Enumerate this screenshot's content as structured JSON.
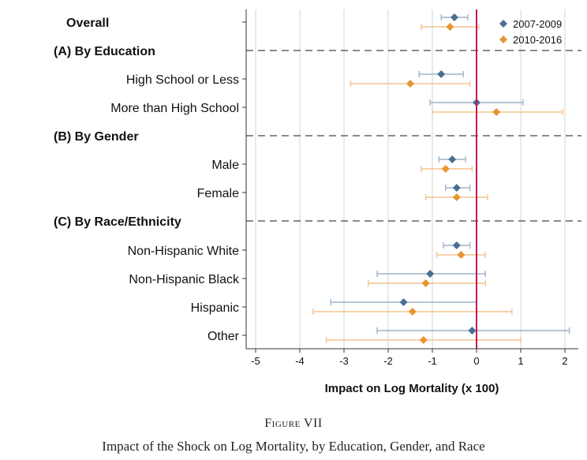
{
  "chart_data": {
    "type": "coefficient-plot",
    "xlabel": "Impact on Log Mortality (x 100)",
    "xlim": [
      -5.3,
      2.3
    ],
    "xticks": [
      -5,
      -4,
      -3,
      -2,
      -1,
      0,
      1,
      2
    ],
    "reference_line": 0,
    "legend": [
      {
        "name": "2007-2009",
        "color": "#4a6f92"
      },
      {
        "name": "2010-2016",
        "color": "#e8952f"
      }
    ],
    "rows": [
      {
        "kind": "group",
        "label": "Overall",
        "est": [
          {
            "series": "2007-2009",
            "value": -0.5,
            "lo": -0.8,
            "hi": -0.2
          },
          {
            "series": "2010-2016",
            "value": -0.6,
            "lo": -1.25,
            "hi": 0.05
          }
        ]
      },
      {
        "kind": "section",
        "label": "(A) By Education"
      },
      {
        "kind": "group",
        "label": "High School or Less",
        "est": [
          {
            "series": "2007-2009",
            "value": -0.8,
            "lo": -1.3,
            "hi": -0.3
          },
          {
            "series": "2010-2016",
            "value": -1.5,
            "lo": -2.85,
            "hi": -0.15
          }
        ]
      },
      {
        "kind": "group",
        "label": "More than High School",
        "est": [
          {
            "series": "2007-2009",
            "value": 0.0,
            "lo": -1.05,
            "hi": 1.05
          },
          {
            "series": "2010-2016",
            "value": 0.45,
            "lo": -1.0,
            "hi": 1.95
          }
        ]
      },
      {
        "kind": "section",
        "label": "(B) By Gender"
      },
      {
        "kind": "group",
        "label": "Male",
        "est": [
          {
            "series": "2007-2009",
            "value": -0.55,
            "lo": -0.85,
            "hi": -0.25
          },
          {
            "series": "2010-2016",
            "value": -0.7,
            "lo": -1.25,
            "hi": -0.1
          }
        ]
      },
      {
        "kind": "group",
        "label": "Female",
        "est": [
          {
            "series": "2007-2009",
            "value": -0.45,
            "lo": -0.7,
            "hi": -0.15
          },
          {
            "series": "2010-2016",
            "value": -0.45,
            "lo": -1.15,
            "hi": 0.25
          }
        ]
      },
      {
        "kind": "section",
        "label": "(C) By Race/Ethnicity"
      },
      {
        "kind": "group",
        "label": "Non-Hispanic White",
        "est": [
          {
            "series": "2007-2009",
            "value": -0.45,
            "lo": -0.75,
            "hi": -0.15
          },
          {
            "series": "2010-2016",
            "value": -0.35,
            "lo": -0.9,
            "hi": 0.2
          }
        ]
      },
      {
        "kind": "group",
        "label": "Non-Hispanic Black",
        "est": [
          {
            "series": "2007-2009",
            "value": -1.05,
            "lo": -2.25,
            "hi": 0.2
          },
          {
            "series": "2010-2016",
            "value": -1.15,
            "lo": -2.45,
            "hi": 0.2
          }
        ]
      },
      {
        "kind": "group",
        "label": "Hispanic",
        "est": [
          {
            "series": "2007-2009",
            "value": -1.65,
            "lo": -3.3,
            "hi": 0.0
          },
          {
            "series": "2010-2016",
            "value": -1.45,
            "lo": -3.7,
            "hi": 0.8
          }
        ]
      },
      {
        "kind": "group",
        "label": "Other",
        "est": [
          {
            "series": "2007-2009",
            "value": -0.1,
            "lo": -2.25,
            "hi": 2.1
          },
          {
            "series": "2010-2016",
            "value": -1.2,
            "lo": -3.4,
            "hi": 1.0
          }
        ]
      }
    ]
  },
  "caption": {
    "figure_number": "Figure VII",
    "title": "Impact of the Shock on Log Mortality, by Education, Gender, and Race"
  }
}
